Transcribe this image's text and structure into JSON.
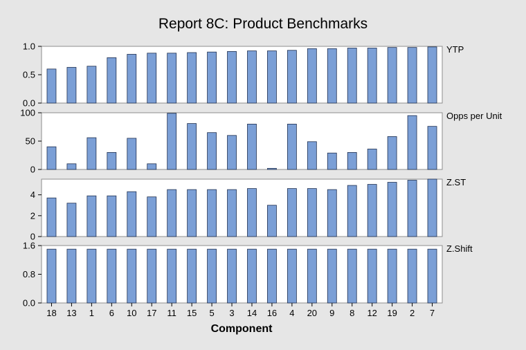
{
  "chart_data": {
    "type": "bar",
    "title": "Report 8C: Product Benchmarks",
    "xlabel": "Component",
    "categories": [
      "18",
      "13",
      "1",
      "6",
      "10",
      "17",
      "11",
      "15",
      "5",
      "3",
      "14",
      "16",
      "4",
      "20",
      "9",
      "8",
      "12",
      "19",
      "2",
      "7"
    ],
    "bar_color": "#7b9fd6",
    "panels": [
      {
        "name": "YTP",
        "ylim": [
          0,
          1.0
        ],
        "yticks": [
          "0.0",
          "0.5",
          "1.0"
        ],
        "ytick_values": [
          0,
          0.5,
          1.0
        ],
        "values": [
          0.6,
          0.63,
          0.65,
          0.8,
          0.86,
          0.88,
          0.88,
          0.89,
          0.9,
          0.91,
          0.92,
          0.92,
          0.93,
          0.96,
          0.96,
          0.97,
          0.97,
          0.98,
          0.98,
          0.99
        ]
      },
      {
        "name": "Opps per Unit",
        "ylim": [
          0,
          100
        ],
        "yticks": [
          "0",
          "50",
          "100"
        ],
        "ytick_values": [
          0,
          50,
          100
        ],
        "values": [
          40,
          10,
          56,
          30,
          55,
          10,
          99,
          81,
          65,
          60,
          80,
          2,
          80,
          49,
          29,
          30,
          36,
          58,
          95,
          76
        ]
      },
      {
        "name": "Z.ST",
        "ylim": [
          0,
          5.5
        ],
        "yticks": [
          "0",
          "2",
          "4"
        ],
        "ytick_values": [
          0,
          2,
          4
        ],
        "values": [
          3.7,
          3.2,
          3.9,
          3.9,
          4.3,
          3.8,
          4.5,
          4.5,
          4.5,
          4.5,
          4.6,
          3.0,
          4.6,
          4.6,
          4.5,
          4.9,
          5.0,
          5.2,
          5.4,
          5.5
        ]
      },
      {
        "name": "Z.Shift",
        "ylim": [
          0,
          1.6
        ],
        "yticks": [
          "0.0",
          "0.8",
          "1.6"
        ],
        "ytick_values": [
          0,
          0.8,
          1.6
        ],
        "values": [
          1.5,
          1.5,
          1.5,
          1.5,
          1.5,
          1.5,
          1.5,
          1.5,
          1.5,
          1.5,
          1.5,
          1.5,
          1.5,
          1.5,
          1.5,
          1.5,
          1.5,
          1.5,
          1.5,
          1.5
        ]
      }
    ]
  }
}
